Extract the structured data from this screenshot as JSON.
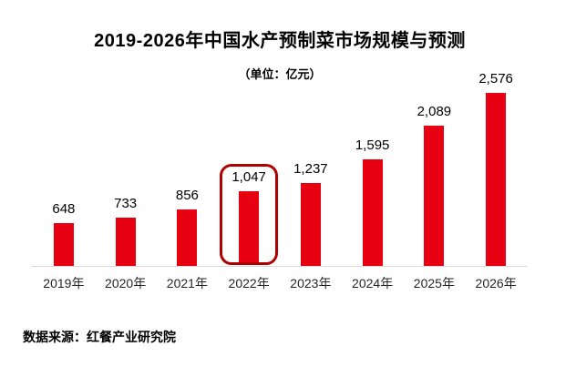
{
  "header": {
    "title": "2019-2026年中国水产预制菜市场规模与预测",
    "unit_label": "（单位：亿元）"
  },
  "footer": {
    "source": "数据来源：红餐产业研究院"
  },
  "chart_data": {
    "type": "bar",
    "title": "2019-2026年中国水产预制菜市场规模与预测",
    "subtitle": "（单位：亿元）",
    "unit": "亿元",
    "categories": [
      "2019年",
      "2020年",
      "2021年",
      "2022年",
      "2023年",
      "2024年",
      "2025年",
      "2026年"
    ],
    "values": [
      648,
      733,
      856,
      1047,
      1237,
      1595,
      2089,
      2576
    ],
    "value_labels": [
      "648",
      "733",
      "856",
      "1,047",
      "1,237",
      "1,595",
      "2,089",
      "2,576"
    ],
    "highlight_index": 3,
    "highlighted_category": "2022年",
    "xlabel": "",
    "ylabel": "",
    "ylim": [
      0,
      2700
    ],
    "grid": false,
    "legend": "none",
    "colors": {
      "bar": "#e60012",
      "highlight_border": "#b00000",
      "axis_line": "#d9d9d9",
      "text": "#000000"
    }
  }
}
